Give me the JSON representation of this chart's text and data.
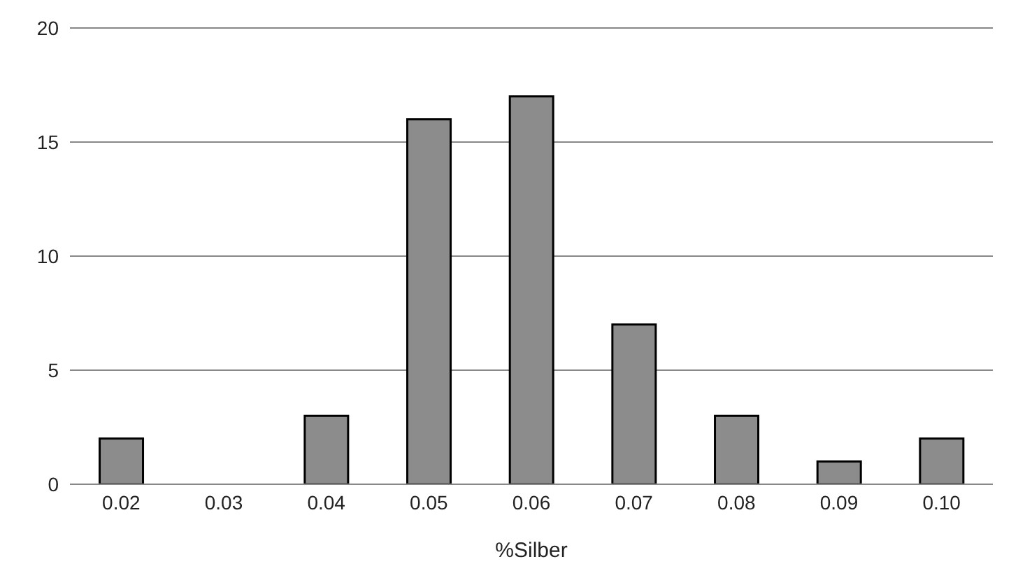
{
  "chart_data": {
    "type": "bar",
    "xlabel": "%Silber",
    "categories": [
      "0.02",
      "0.03",
      "0.04",
      "0.05",
      "0.06",
      "0.07",
      "0.08",
      "0.09",
      "0.10"
    ],
    "values": [
      2,
      0,
      3,
      16,
      17,
      7,
      3,
      1,
      2
    ],
    "color": "#8c8c8c",
    "ylim": [
      0,
      20
    ],
    "yticks": [
      0,
      5,
      10,
      15,
      20
    ],
    "grid": "y"
  }
}
